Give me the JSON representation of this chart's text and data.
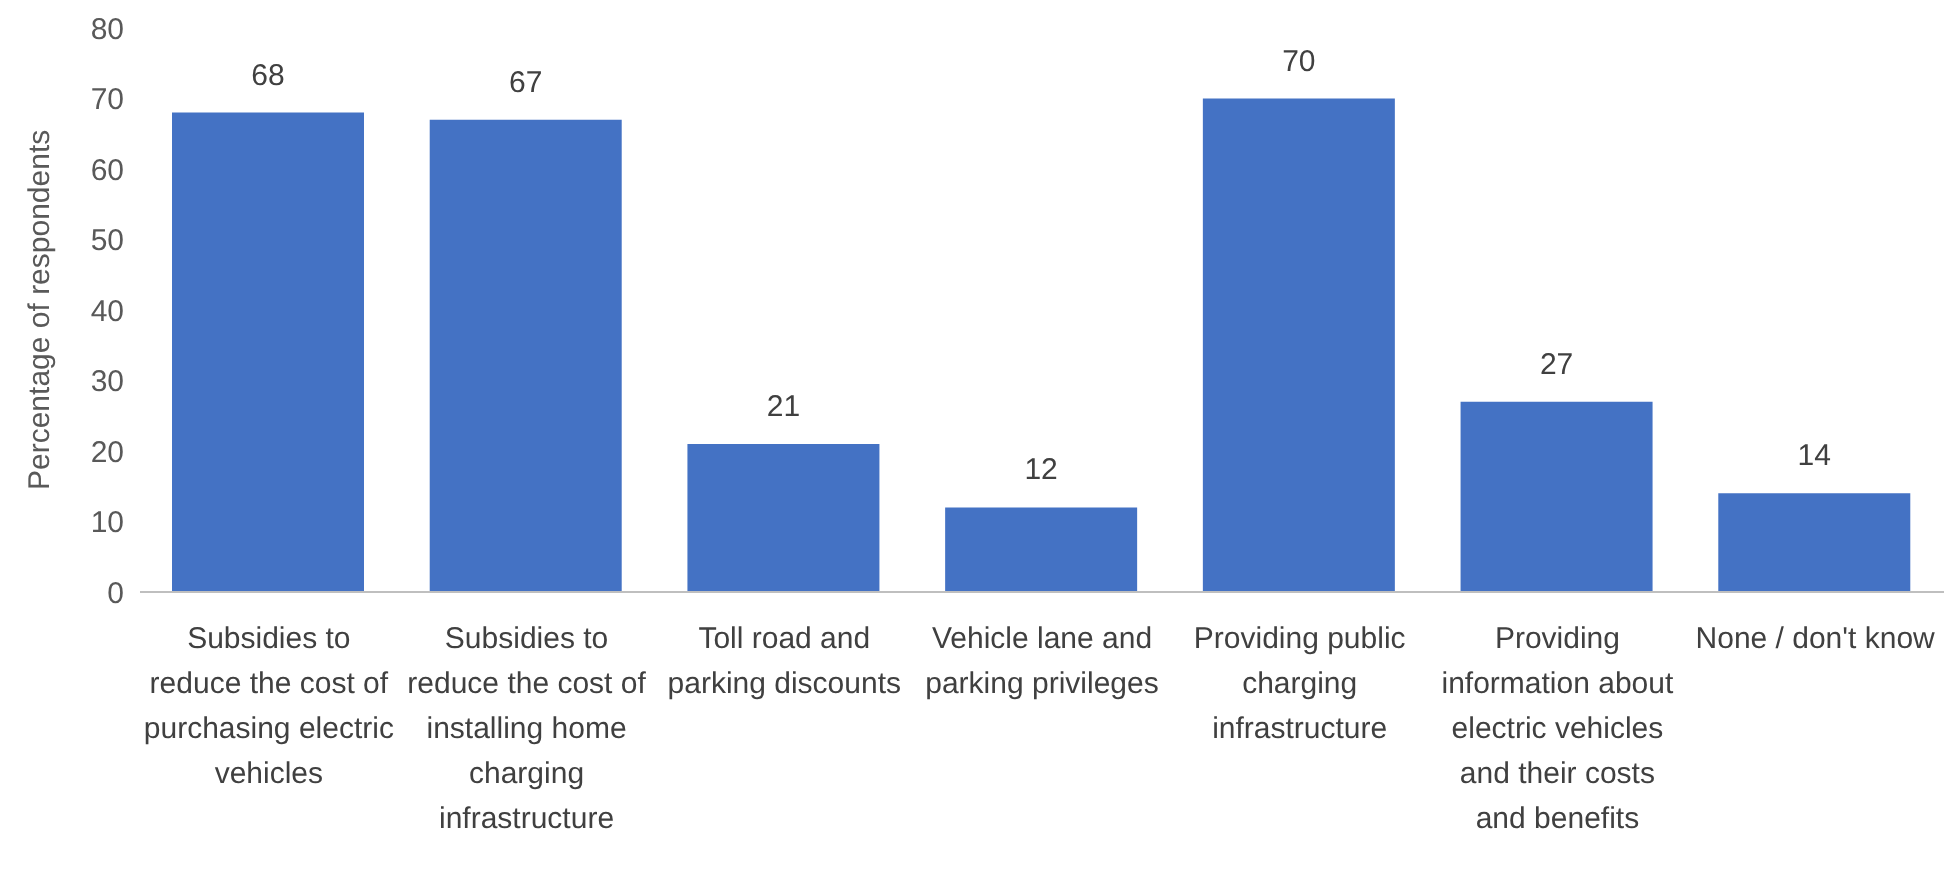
{
  "chart_data": {
    "type": "bar",
    "ylabel": "Percentage of respondents",
    "categories": [
      "Subsidies to reduce the cost of purchasing electric vehicles",
      "Subsidies to reduce the cost of installing home charging infrastructure",
      "Toll road and parking discounts",
      "Vehicle lane and parking privileges",
      "Providing public charging infrastructure",
      "Providing information about electric vehicles and their costs and benefits",
      "None / don't know"
    ],
    "values": [
      68,
      67,
      21,
      12,
      70,
      27,
      14
    ],
    "color": "#4472c4",
    "ylim": [
      0,
      80
    ],
    "yticks": [
      0,
      10,
      20,
      30,
      40,
      50,
      60,
      70,
      80
    ],
    "grid": false,
    "legend": false,
    "data_labels": true
  }
}
